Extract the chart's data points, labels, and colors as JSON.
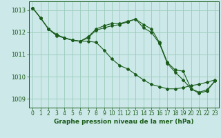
{
  "bg_color": "#cce8e8",
  "line_color": "#1a5c1a",
  "grid_color": "#99ccbb",
  "xlabel": "Graphe pression niveau de la mer (hPa)",
  "ylim": [
    1008.6,
    1013.4
  ],
  "xlim": [
    -0.5,
    23.5
  ],
  "yticks": [
    1009,
    1010,
    1011,
    1012,
    1013
  ],
  "xticks": [
    0,
    1,
    2,
    3,
    4,
    5,
    6,
    7,
    8,
    9,
    10,
    11,
    12,
    13,
    14,
    15,
    16,
    17,
    18,
    19,
    20,
    21,
    22,
    23
  ],
  "series": [
    [
      1013.1,
      1012.65,
      1012.15,
      1011.85,
      1011.75,
      1011.65,
      1011.6,
      1011.6,
      1011.55,
      1011.2,
      1010.8,
      1010.5,
      1010.35,
      1010.1,
      1009.85,
      1009.65,
      1009.55,
      1009.45,
      1009.45,
      1009.5,
      1009.6,
      1009.65,
      1009.75,
      1009.85
    ],
    [
      1013.1,
      1012.65,
      1012.15,
      1011.9,
      1011.75,
      1011.65,
      1011.6,
      1011.8,
      1012.15,
      1012.3,
      1012.4,
      1012.4,
      1012.5,
      1012.6,
      1012.35,
      1012.15,
      1011.55,
      1010.65,
      1010.3,
      1010.25,
      1009.45,
      1009.25,
      1009.35,
      1009.8
    ],
    [
      1013.1,
      1012.65,
      1012.15,
      1011.9,
      1011.75,
      1011.65,
      1011.6,
      1011.75,
      1012.1,
      1012.2,
      1012.3,
      1012.35,
      1012.48,
      1012.6,
      1012.2,
      1012.0,
      1011.5,
      1010.6,
      1010.2,
      1009.85,
      1009.45,
      1009.3,
      1009.4,
      1009.8
    ]
  ],
  "ytick_fontsize": 6,
  "xtick_fontsize": 5.5,
  "xlabel_fontsize": 6.5
}
